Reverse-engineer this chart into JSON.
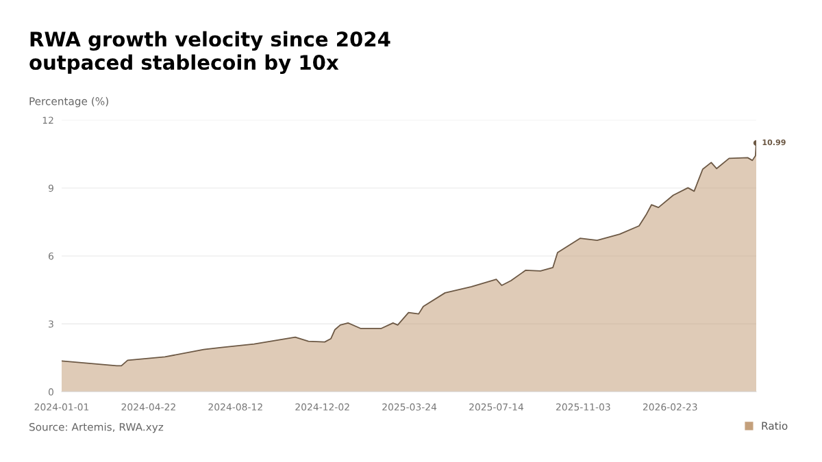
{
  "chart_data": {
    "type": "area",
    "title": "RWA growth velocity since 2024\noutpaced stablecoin by 10x",
    "ylabel": "Percentage (%)",
    "x": [
      "2024-01-01",
      "2024-03-12",
      "2024-03-18",
      "2024-03-26",
      "2024-05-13",
      "2024-07-02",
      "2024-07-25",
      "2024-09-05",
      "2024-10-28",
      "2024-11-14",
      "2024-12-05",
      "2024-12-13",
      "2024-12-18",
      "2024-12-25",
      "2025-01-04",
      "2025-01-20",
      "2025-02-16",
      "2025-03-03",
      "2025-03-09",
      "2025-03-23",
      "2025-04-05",
      "2025-04-11",
      "2025-05-09",
      "2025-06-12",
      "2025-07-14",
      "2025-07-21",
      "2025-08-02",
      "2025-08-21",
      "2025-09-09",
      "2025-09-25",
      "2025-10-01",
      "2025-10-30",
      "2025-11-21",
      "2025-12-20",
      "2026-01-14",
      "2026-01-23",
      "2026-01-30",
      "2026-02-08",
      "2026-02-27",
      "2026-03-18",
      "2026-03-26",
      "2026-04-06",
      "2026-04-17",
      "2026-04-24",
      "2026-05-10",
      "2026-06-03",
      "2026-06-09",
      "2026-06-13",
      "2026-06-14"
    ],
    "series": [
      {
        "name": "Ratio",
        "color": "#c4a07c",
        "values": [
          1.36,
          1.15,
          1.15,
          1.39,
          1.54,
          1.87,
          1.96,
          2.11,
          2.41,
          2.23,
          2.2,
          2.35,
          2.74,
          2.95,
          3.04,
          2.8,
          2.8,
          3.04,
          2.95,
          3.5,
          3.44,
          3.77,
          4.37,
          4.64,
          4.97,
          4.7,
          4.91,
          5.37,
          5.34,
          5.49,
          6.15,
          6.78,
          6.69,
          6.96,
          7.33,
          7.81,
          8.26,
          8.14,
          8.68,
          9.01,
          8.86,
          9.83,
          10.13,
          9.86,
          10.31,
          10.34,
          10.22,
          10.43,
          10.99
        ]
      }
    ],
    "xlim": [
      "2024-01-01",
      "2026-06-14"
    ],
    "xticks": [
      "2024-01-01",
      "2024-04-22",
      "2024-08-12",
      "2024-12-02",
      "2025-03-24",
      "2025-07-14",
      "2025-11-03",
      "2026-02-23"
    ],
    "ylim": [
      0,
      12
    ],
    "yticks": [
      0,
      3,
      6,
      9,
      12
    ],
    "grid": "y",
    "legend": "bottom right",
    "annotations": [
      {
        "text": "10.99",
        "x": "2026-06-14",
        "y": 10.99
      },
      "Source: Artemis, RWA.xyz"
    ]
  }
}
